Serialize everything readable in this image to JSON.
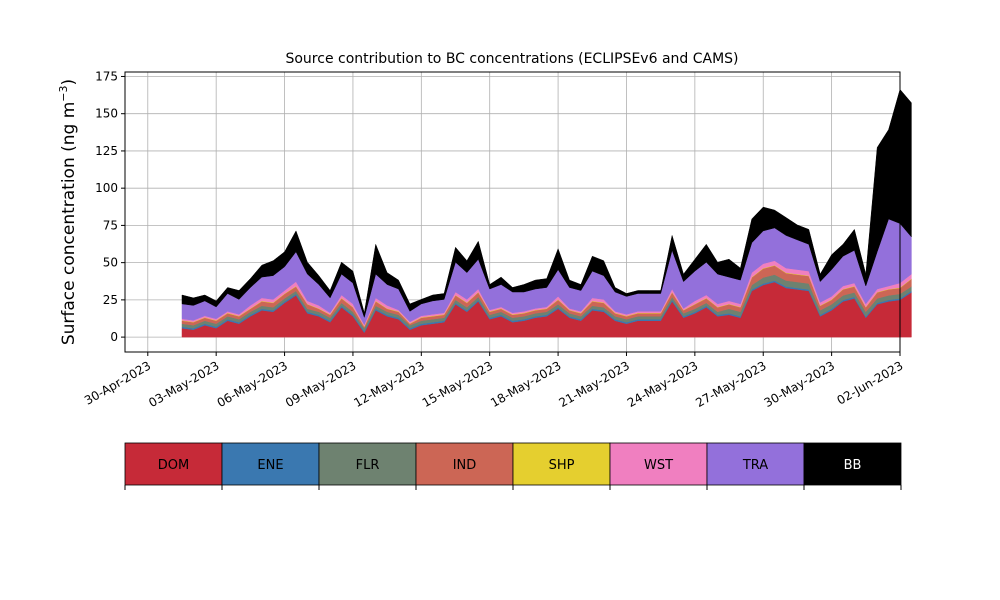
{
  "chart_data": {
    "type": "area",
    "stacked": true,
    "title": "Source contribution to BC concentrations (ECLIPSEv6 and CAMS)",
    "ylabel": "Surface concentration (ng m",
    "ylabel_sup": "−3",
    "ylabel_close": ")",
    "xlabel": "",
    "ylim": [
      -10,
      178
    ],
    "yticks": [
      0,
      25,
      50,
      75,
      100,
      125,
      150,
      175
    ],
    "xlim": [
      "2023-04-29",
      "2023-06-02"
    ],
    "xticks": [
      {
        "date": "2023-04-30",
        "label": "30-Apr-2023"
      },
      {
        "date": "2023-05-03",
        "label": "03-May-2023"
      },
      {
        "date": "2023-05-06",
        "label": "06-May-2023"
      },
      {
        "date": "2023-05-09",
        "label": "09-May-2023"
      },
      {
        "date": "2023-05-12",
        "label": "12-May-2023"
      },
      {
        "date": "2023-05-15",
        "label": "15-May-2023"
      },
      {
        "date": "2023-05-18",
        "label": "18-May-2023"
      },
      {
        "date": "2023-05-21",
        "label": "21-May-2023"
      },
      {
        "date": "2023-05-24",
        "label": "24-May-2023"
      },
      {
        "date": "2023-05-27",
        "label": "27-May-2023"
      },
      {
        "date": "2023-05-30",
        "label": "30-May-2023"
      },
      {
        "date": "2023-06-02",
        "label": "02-Jun-2023"
      }
    ],
    "grid": true,
    "legend_placement": "below",
    "x": [
      "2023-05-01 12:00",
      "2023-05-02 00:00",
      "2023-05-02 12:00",
      "2023-05-03 00:00",
      "2023-05-03 12:00",
      "2023-05-04 00:00",
      "2023-05-04 12:00",
      "2023-05-05 00:00",
      "2023-05-05 12:00",
      "2023-05-06 00:00",
      "2023-05-06 12:00",
      "2023-05-07 00:00",
      "2023-05-07 12:00",
      "2023-05-08 00:00",
      "2023-05-08 12:00",
      "2023-05-09 00:00",
      "2023-05-09 12:00",
      "2023-05-10 00:00",
      "2023-05-10 12:00",
      "2023-05-11 00:00",
      "2023-05-11 12:00",
      "2023-05-12 00:00",
      "2023-05-12 12:00",
      "2023-05-13 00:00",
      "2023-05-13 12:00",
      "2023-05-14 00:00",
      "2023-05-14 12:00",
      "2023-05-15 00:00",
      "2023-05-15 12:00",
      "2023-05-16 00:00",
      "2023-05-16 12:00",
      "2023-05-17 00:00",
      "2023-05-17 12:00",
      "2023-05-18 00:00",
      "2023-05-18 12:00",
      "2023-05-19 00:00",
      "2023-05-19 12:00",
      "2023-05-20 00:00",
      "2023-05-20 12:00",
      "2023-05-21 00:00",
      "2023-05-21 12:00",
      "2023-05-22 00:00",
      "2023-05-22 12:00",
      "2023-05-23 00:00",
      "2023-05-23 12:00",
      "2023-05-24 00:00",
      "2023-05-24 12:00",
      "2023-05-25 00:00",
      "2023-05-25 12:00",
      "2023-05-26 00:00",
      "2023-05-26 12:00",
      "2023-05-27 00:00",
      "2023-05-27 12:00",
      "2023-05-28 00:00",
      "2023-05-28 12:00",
      "2023-05-29 00:00",
      "2023-05-29 12:00",
      "2023-05-30 00:00",
      "2023-05-30 12:00",
      "2023-05-31 00:00",
      "2023-05-31 12:00",
      "2023-06-01 00:00",
      "2023-06-01 12:00",
      "2023-06-02 00:00",
      "2023-06-02 12:00"
    ],
    "series": [
      {
        "name": "DOM",
        "color": "#c62a38",
        "values": [
          6,
          5,
          8,
          6,
          11,
          9,
          14,
          18,
          17,
          23,
          28,
          16,
          14,
          10,
          20,
          14,
          3,
          18,
          14,
          12,
          5,
          8,
          9,
          10,
          22,
          17,
          24,
          12,
          14,
          10,
          11,
          13,
          14,
          19,
          13,
          11,
          18,
          17,
          11,
          9,
          11,
          11,
          11,
          24,
          13,
          16,
          20,
          14,
          15,
          13,
          31,
          35,
          37,
          33,
          32,
          31,
          14,
          18,
          24,
          26,
          13,
          22,
          24,
          25,
          30
        ]
      },
      {
        "name": "ENE",
        "color": "#3a78b0",
        "values": [
          1,
          1,
          1,
          1,
          1,
          1,
          1,
          1,
          1,
          1,
          1,
          1,
          1,
          1,
          1,
          1,
          1,
          1,
          1,
          1,
          1,
          1,
          1,
          1,
          1,
          1,
          1,
          1,
          1,
          1,
          1,
          1,
          1,
          1,
          1,
          1,
          1,
          1,
          1,
          1,
          1,
          1,
          1,
          1,
          1,
          1,
          1,
          1,
          1,
          1,
          1,
          1,
          1,
          1,
          1,
          1,
          1,
          1,
          1,
          1,
          1,
          1,
          1,
          1,
          1
        ]
      },
      {
        "name": "FLR",
        "color": "#6e8270",
        "values": [
          2,
          2,
          2,
          2,
          2,
          2,
          2,
          2,
          2,
          2,
          2,
          2,
          2,
          2,
          2,
          2,
          2,
          2,
          2,
          2,
          2,
          2,
          2,
          2,
          2,
          2,
          2,
          2,
          2,
          2,
          2,
          2,
          2,
          2,
          2,
          2,
          2,
          2,
          2,
          2,
          2,
          2,
          2,
          2,
          2,
          2,
          2,
          2,
          3,
          3,
          3,
          4,
          4,
          4,
          4,
          4,
          3,
          3,
          3,
          3,
          3,
          3,
          3,
          3,
          3
        ]
      },
      {
        "name": "IND",
        "color": "#cc6655",
        "values": [
          2,
          2,
          2,
          2,
          2,
          2,
          2,
          3,
          3,
          3,
          3,
          3,
          2,
          2,
          3,
          3,
          1,
          3,
          2,
          2,
          1,
          2,
          2,
          2,
          3,
          3,
          3,
          2,
          2,
          2,
          2,
          2,
          2,
          3,
          2,
          2,
          3,
          3,
          2,
          2,
          2,
          2,
          2,
          3,
          2,
          3,
          3,
          3,
          3,
          3,
          5,
          6,
          6,
          5,
          5,
          5,
          3,
          3,
          4,
          4,
          3,
          4,
          4,
          4,
          5
        ]
      },
      {
        "name": "SHP",
        "color": "#e5cf2f",
        "values": [
          0.3,
          0.3,
          0.3,
          0.3,
          0.3,
          0.3,
          0.3,
          0.3,
          0.3,
          0.3,
          0.3,
          0.3,
          0.3,
          0.3,
          0.3,
          0.3,
          0.3,
          0.3,
          0.3,
          0.3,
          0.3,
          0.3,
          0.3,
          0.3,
          0.3,
          0.3,
          0.3,
          0.3,
          0.3,
          0.3,
          0.3,
          0.3,
          0.3,
          0.3,
          0.3,
          0.3,
          0.3,
          0.3,
          0.3,
          0.3,
          0.3,
          0.3,
          0.3,
          0.3,
          0.3,
          0.3,
          0.3,
          0.3,
          0.3,
          0.3,
          0.3,
          0.3,
          0.3,
          0.3,
          0.3,
          0.3,
          0.3,
          0.3,
          0.3,
          0.3,
          0.3,
          0.3,
          0.3,
          0.3,
          0.3
        ]
      },
      {
        "name": "WST",
        "color": "#f07fc0",
        "values": [
          1,
          1,
          1,
          1,
          1,
          1,
          2,
          2,
          2,
          2,
          3,
          2,
          2,
          1,
          2,
          2,
          1,
          2,
          2,
          1,
          1,
          1,
          1,
          1,
          2,
          2,
          2,
          1,
          1,
          1,
          1,
          1,
          1,
          2,
          1,
          1,
          2,
          2,
          1,
          1,
          1,
          1,
          1,
          2,
          1,
          2,
          2,
          2,
          2,
          2,
          3,
          3,
          3,
          3,
          3,
          3,
          2,
          2,
          2,
          2,
          2,
          2,
          2,
          3,
          3
        ]
      },
      {
        "name": "TRA",
        "color": "#9370db",
        "values": [
          10,
          10,
          10,
          8,
          12,
          10,
          12,
          14,
          16,
          16,
          20,
          18,
          14,
          10,
          14,
          14,
          5,
          16,
          14,
          14,
          7,
          8,
          9,
          9,
          20,
          18,
          20,
          14,
          15,
          14,
          13,
          13,
          13,
          18,
          14,
          14,
          18,
          16,
          13,
          12,
          12,
          12,
          12,
          26,
          18,
          20,
          22,
          20,
          16,
          16,
          20,
          22,
          22,
          22,
          20,
          18,
          14,
          18,
          20,
          22,
          12,
          25,
          45,
          40,
          25
        ]
      },
      {
        "name": "BB",
        "color": "#000000",
        "values": [
          6,
          5,
          4,
          4,
          4,
          6,
          6,
          8,
          10,
          10,
          14,
          8,
          6,
          5,
          8,
          8,
          3,
          20,
          8,
          6,
          5,
          3,
          4,
          4,
          10,
          8,
          12,
          3,
          5,
          3,
          5,
          6,
          6,
          14,
          5,
          4,
          10,
          10,
          3,
          2,
          2,
          2,
          2,
          10,
          5,
          8,
          12,
          8,
          12,
          8,
          16,
          16,
          12,
          12,
          10,
          10,
          5,
          10,
          8,
          14,
          8,
          70,
          60,
          90,
          90
        ]
      }
    ]
  }
}
